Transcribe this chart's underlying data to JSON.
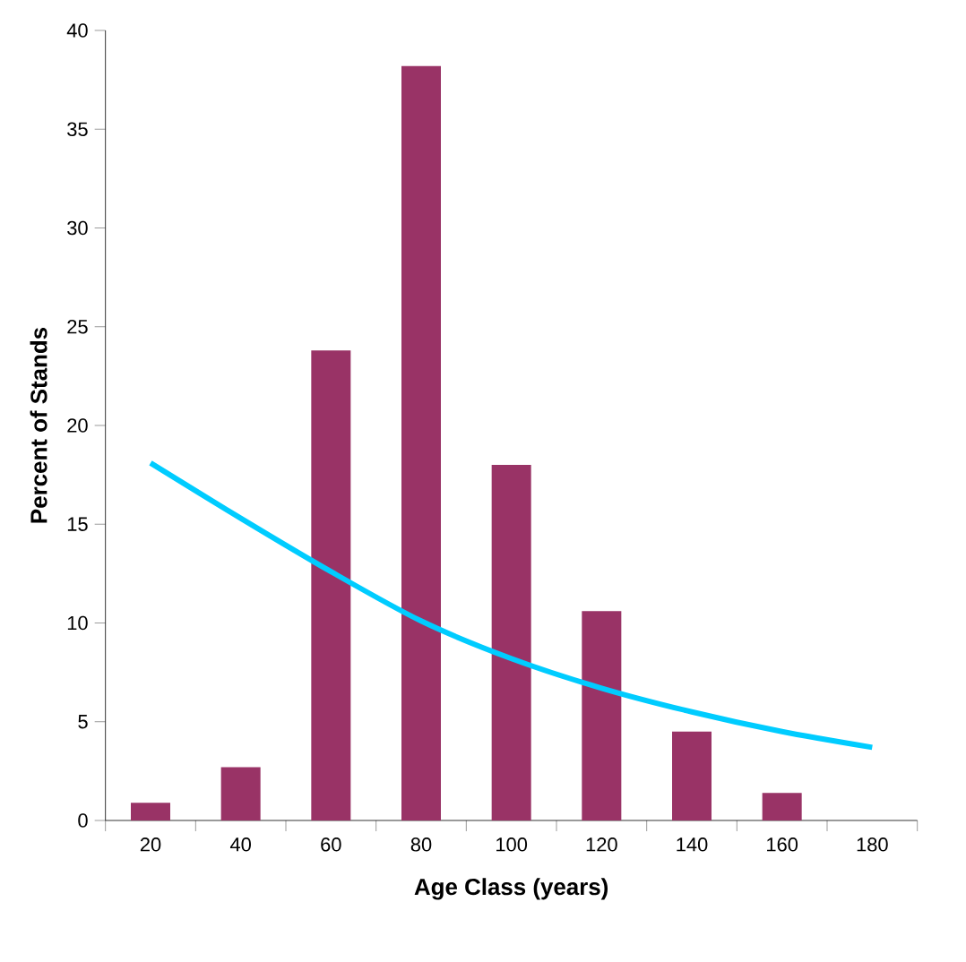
{
  "chart_data": {
    "type": "bar",
    "xlabel": "Age Class (years)",
    "ylabel": "Percent of Stands",
    "categories": [
      "20",
      "40",
      "60",
      "80",
      "100",
      "120",
      "140",
      "160",
      "180"
    ],
    "series": [
      {
        "color": "#993366",
        "values": [
          0.9,
          2.7,
          23.8,
          38.2,
          18.0,
          10.6,
          4.5,
          1.4,
          null
        ]
      },
      {
        "type": "line",
        "color": "#00ccff",
        "values": [
          18.1,
          15.3,
          12.6,
          10.1,
          8.2,
          6.7,
          5.5,
          4.5,
          3.7
        ]
      }
    ],
    "ylim": [
      0,
      40
    ],
    "yticks": [
      0,
      5,
      10,
      15,
      20,
      25,
      30,
      35,
      40
    ],
    "grid": false,
    "marker": "none"
  }
}
